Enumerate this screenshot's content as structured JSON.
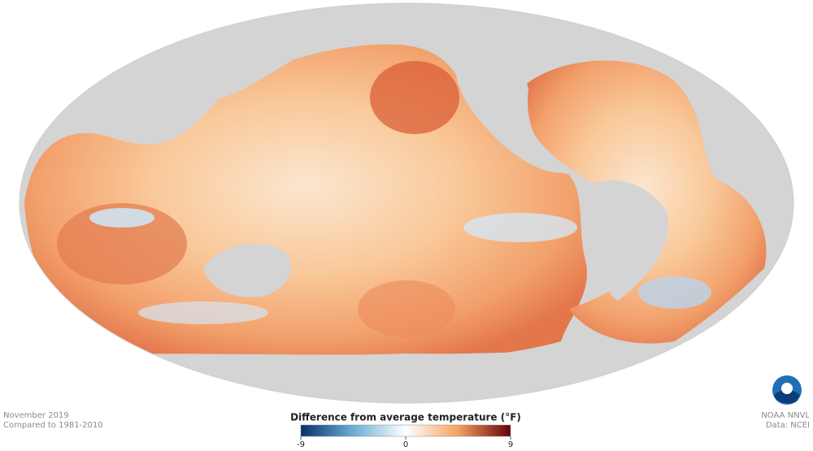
{
  "caption": {
    "date": "November 2019",
    "baseline": "Compared to 1981-2010"
  },
  "credit": {
    "producer": "NOAA NNVL",
    "source": "Data: NCEI"
  },
  "colorbar": {
    "title": "Difference from average temperature (°F)",
    "range": [
      -9,
      9
    ],
    "ticks": [
      -9,
      0,
      9
    ]
  }
}
